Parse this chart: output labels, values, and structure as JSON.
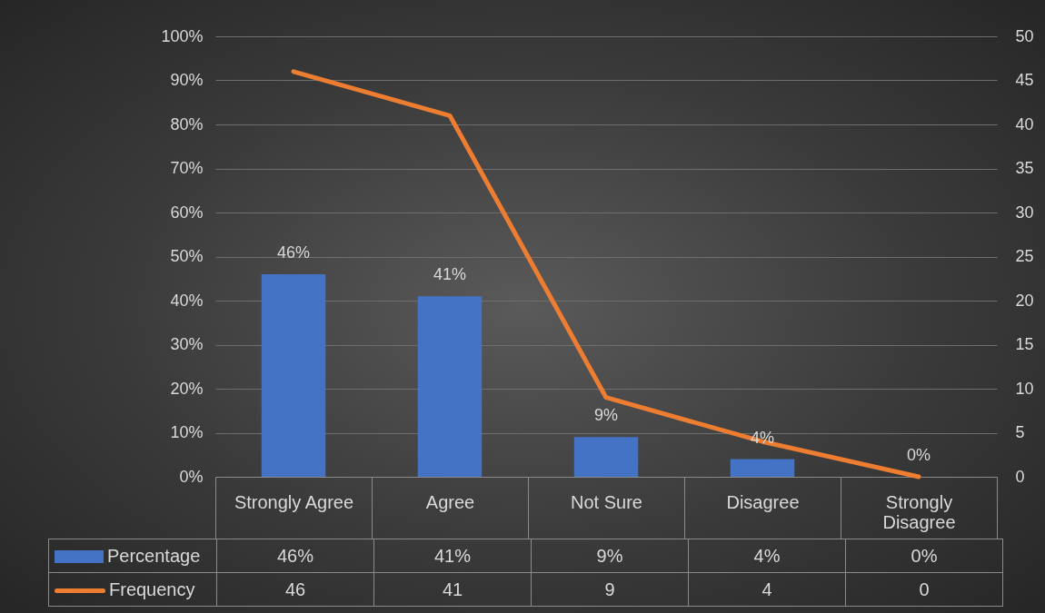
{
  "chart_data": {
    "type": "bar",
    "categories": [
      "Strongly Agree",
      "Agree",
      "Not Sure",
      "Disagree",
      "Strongly Disagree"
    ],
    "series": [
      {
        "name": "Percentage",
        "color": "#4472c4",
        "values": [
          46,
          41,
          9,
          4,
          0
        ],
        "value_labels": [
          "46%",
          "41%",
          "9%",
          "4%",
          "0%"
        ]
      },
      {
        "name": "Frequency",
        "type": "line",
        "axis": "y2",
        "color": "#ed7d31",
        "values": [
          46,
          41,
          9,
          4,
          0
        ],
        "value_labels": [
          "46",
          "41",
          "9",
          "4",
          "0"
        ]
      }
    ],
    "ylim": [
      0,
      100
    ],
    "yticks": [
      {
        "value": 0,
        "label": "0%"
      },
      {
        "value": 10,
        "label": "10%"
      },
      {
        "value": 20,
        "label": "20%"
      },
      {
        "value": 30,
        "label": "30%"
      },
      {
        "value": 40,
        "label": "40%"
      },
      {
        "value": 50,
        "label": "50%"
      },
      {
        "value": 60,
        "label": "60%"
      },
      {
        "value": 70,
        "label": "70%"
      },
      {
        "value": 80,
        "label": "80%"
      },
      {
        "value": 90,
        "label": "90%"
      },
      {
        "value": 100,
        "label": "100%"
      }
    ],
    "y2lim": [
      0,
      50
    ],
    "y2ticks": [
      0,
      5,
      10,
      15,
      20,
      25,
      30,
      35,
      40,
      45,
      50
    ],
    "grid": "y",
    "legend": "bottom"
  }
}
